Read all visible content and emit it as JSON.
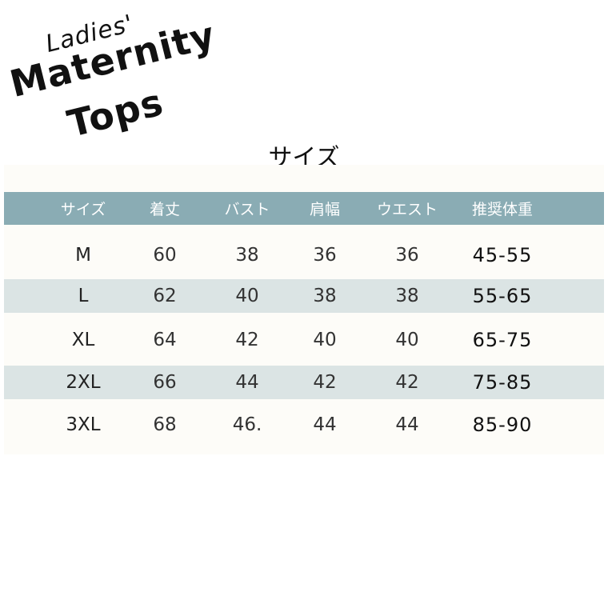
{
  "logo": {
    "ladies": "Ladies'",
    "line1": "Maternity",
    "line2": "Tops"
  },
  "section_title": "サイズ",
  "table": {
    "headers": [
      "サイズ",
      "着丈",
      "バスト",
      "肩幅",
      "ウエスト",
      "推奨体重"
    ],
    "rows": [
      [
        "M",
        "60",
        "38",
        "36",
        "36",
        "45-55"
      ],
      [
        "L",
        "62",
        "40",
        "38",
        "38",
        "55-65"
      ],
      [
        "XL",
        "64",
        "42",
        "40",
        "40",
        "65-75"
      ],
      [
        "2XL",
        "66",
        "44",
        "42",
        "42",
        "75-85"
      ],
      [
        "3XL",
        "68",
        "46.",
        "44",
        "44",
        "85-90"
      ]
    ]
  },
  "colors": {
    "header_bg": "#8aacb4",
    "alt_row_bg": "#dbe4e4",
    "table_bg": "#fdfcf8"
  }
}
